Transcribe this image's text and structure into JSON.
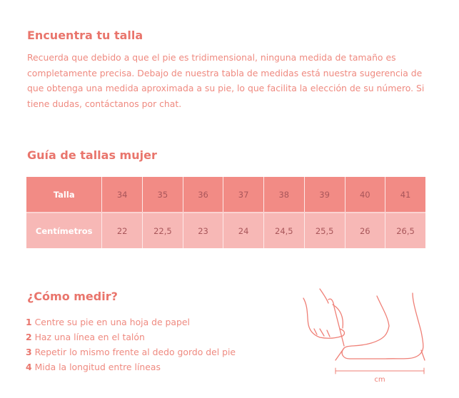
{
  "intro": {
    "title": "Encuentra tu talla",
    "text": "Recuerda que debido a que el pie es tridimensional, ninguna medida de tamaño es completamente precisa. Debajo de nuestra tabla de medidas está nuestra sugerencia de que obtenga una medida aproximada a su pie, lo que facilita la elección de su número. Si tiene dudas, contáctanos por chat."
  },
  "guide": {
    "title": "Guía de tallas mujer",
    "rows": [
      {
        "label": "Talla",
        "values": [
          "34",
          "35",
          "36",
          "37",
          "38",
          "39",
          "40",
          "41"
        ]
      },
      {
        "label": "Centímetros",
        "values": [
          "22",
          "22,5",
          "23",
          "24",
          "24,5",
          "25,5",
          "26",
          "26,5"
        ]
      }
    ]
  },
  "measure": {
    "title": "¿Cómo medir?",
    "steps": [
      {
        "n": "1",
        "text": "Centre su pie en una hoja de papel"
      },
      {
        "n": "2",
        "text": "Haz una línea en el talón"
      },
      {
        "n": "3",
        "text": "Repetir lo mismo frente al dedo gordo del pie"
      },
      {
        "n": "4",
        "text": "Mida la longitud entre líneas"
      }
    ],
    "unit": "cm"
  },
  "colors": {
    "accent": "#e9756c",
    "header_row": "#f28b85",
    "body_row": "#f7b8b6"
  }
}
